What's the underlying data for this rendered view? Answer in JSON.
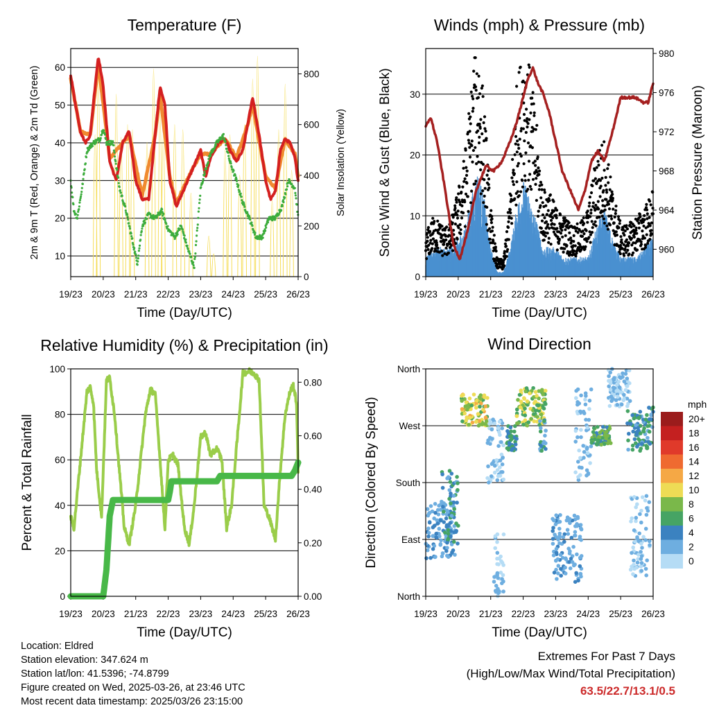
{
  "info": {
    "location": "Location: Eldred",
    "elevation": "Station elevation: 347.624 m",
    "latlon": "Station lat/lon: 41.5396; -74.8799",
    "created": "Figure created on Wed, 2025-03-26, at 23:46 UTC",
    "recent": "Most recent data timestamp: 2025/03/26 23:15:00"
  },
  "extremes": {
    "title": "Extremes For Past 7 Days",
    "subtitle": "(High/Low/Max Wind/Total Precipitation)",
    "values": "63.5/22.7/13.1/0.5",
    "color": "#cc2a2a"
  },
  "chart_data": [
    {
      "type": "line",
      "title": "Temperature (F)",
      "xlabel": "Time (Day/UTC)",
      "ylabel": "2m & 9m T (Red, Orange) & 2m Td (Green)",
      "y2label": "Solar Insolation (Yellow)",
      "x_ticks": [
        "19/23",
        "20/23",
        "21/23",
        "22/23",
        "23/23",
        "24/23",
        "25/23",
        "26/23"
      ],
      "xlim": [
        0,
        7
      ],
      "ylim": [
        4.5,
        65
      ],
      "y_ticks": [
        10,
        20,
        30,
        40,
        50,
        60
      ],
      "y2lim": [
        0,
        900
      ],
      "y2_ticks": [
        0,
        200,
        400,
        600,
        800
      ],
      "grid": true,
      "series": [
        {
          "name": "2m T",
          "color": "#d42020",
          "axis": "left",
          "x": [
            0,
            0.15,
            0.3,
            0.45,
            0.6,
            0.75,
            0.85,
            1.0,
            1.2,
            1.4,
            1.6,
            1.8,
            2.0,
            2.2,
            2.4,
            2.6,
            2.75,
            2.9,
            3.05,
            3.25,
            3.5,
            3.8,
            4.0,
            4.15,
            4.3,
            4.55,
            4.75,
            4.9,
            5.1,
            5.3,
            5.45,
            5.6,
            5.8,
            6.0,
            6.15,
            6.3,
            6.45,
            6.6,
            6.75,
            6.9,
            7.0
          ],
          "y": [
            58,
            50,
            43,
            40,
            42,
            55,
            63,
            55,
            35,
            30,
            40,
            43,
            30,
            25,
            25,
            42,
            55,
            50,
            30,
            23,
            28,
            34,
            38,
            31,
            36,
            40,
            41,
            38,
            35,
            38,
            45,
            52,
            42,
            30,
            25,
            27,
            38,
            41,
            40,
            36,
            30
          ]
        },
        {
          "name": "9m T",
          "color": "#f08a30",
          "axis": "left",
          "x": [
            0,
            0.3,
            0.6,
            0.85,
            1.2,
            1.6,
            1.8,
            2.2,
            2.6,
            2.75,
            3.05,
            3.25,
            3.8,
            4.0,
            4.3,
            4.75,
            4.9,
            5.1,
            5.45,
            5.6,
            6.0,
            6.3,
            6.6,
            6.9,
            7.0
          ],
          "y": [
            57,
            43,
            42,
            61,
            36,
            40,
            42,
            26,
            42,
            53,
            31,
            24,
            34,
            37,
            37,
            41,
            39,
            36,
            45,
            50,
            31,
            28,
            41,
            37,
            31
          ]
        },
        {
          "name": "2m Td",
          "color": "#3cac3c",
          "axis": "left",
          "x": [
            0,
            0.1,
            0.2,
            0.35,
            0.5,
            0.7,
            0.9,
            1.0,
            1.1,
            1.3,
            1.5,
            1.7,
            1.9,
            2.05,
            2.2,
            2.4,
            2.6,
            2.8,
            3.0,
            3.2,
            3.4,
            3.6,
            3.8,
            4.0,
            4.15,
            4.3,
            4.5,
            4.7,
            4.9,
            5.1,
            5.3,
            5.5,
            5.7,
            5.9,
            6.1,
            6.3,
            6.5,
            6.7,
            6.9,
            7.0
          ],
          "y": [
            30,
            22,
            20,
            28,
            38,
            40,
            41,
            44,
            40,
            40,
            28,
            22,
            14,
            8,
            18,
            21,
            20,
            22,
            17,
            15,
            18,
            12,
            7,
            28,
            33,
            37,
            40,
            42,
            35,
            30,
            24,
            20,
            15,
            15,
            20,
            20,
            23,
            30,
            28,
            20
          ]
        },
        {
          "name": "Solar Insolation",
          "color": "#f5dc55",
          "axis": "right",
          "kind": "pulses",
          "peaks_x": [
            0.75,
            0.85,
            1.4,
            1.55,
            1.75,
            1.9,
            2.35,
            2.55,
            2.75,
            2.85,
            3.2,
            3.45,
            3.7,
            4.25,
            4.4,
            4.75,
            4.9,
            5.2,
            5.35,
            5.6,
            5.75,
            6.2,
            6.4,
            6.6,
            6.8
          ],
          "peaks_y": [
            560,
            800,
            720,
            550,
            600,
            580,
            530,
            820,
            650,
            560,
            600,
            580,
            330,
            160,
            90,
            500,
            560,
            400,
            600,
            780,
            870,
            300,
            580,
            760,
            420
          ]
        }
      ]
    },
    {
      "type": "scatter",
      "title": "Winds (mph) & Pressure (mb)",
      "xlabel": "Time (Day/UTC)",
      "ylabel": "Sonic Wind & Gust (Blue, Black)",
      "y2label": "Station Pressure (Maroon)",
      "x_ticks": [
        "19/23",
        "20/23",
        "21/23",
        "22/23",
        "23/23",
        "24/23",
        "25/23",
        "26/23"
      ],
      "xlim": [
        0,
        7
      ],
      "ylim": [
        0,
        37.5
      ],
      "y_ticks": [
        0,
        10,
        20,
        30
      ],
      "y2lim": [
        957.2,
        980.5
      ],
      "y2_ticks": [
        960,
        964,
        968,
        972,
        976,
        980
      ],
      "grid": true,
      "series": [
        {
          "name": "Gust",
          "color": "#000000",
          "x": [
            0,
            0.25,
            0.5,
            0.75,
            1.0,
            1.2,
            1.4,
            1.6,
            1.8,
            2.0,
            2.2,
            2.4,
            2.6,
            2.8,
            3.0,
            3.2,
            3.4,
            3.6,
            3.8,
            4.0,
            4.25,
            4.5,
            4.75,
            5.0,
            5.25,
            5.5,
            5.75,
            6.0,
            6.25,
            6.5,
            6.75,
            7.0
          ],
          "y": [
            5,
            7,
            6,
            6,
            10,
            14,
            22,
            28,
            20,
            8,
            2,
            2,
            10,
            22,
            27,
            24,
            18,
            10,
            10,
            8,
            7,
            6,
            6,
            8,
            14,
            16,
            10,
            6,
            6,
            7,
            8,
            10
          ]
        },
        {
          "name": "Sonic Wind",
          "color": "#4a90d0",
          "x": [
            0,
            0.25,
            0.5,
            0.75,
            1.0,
            1.2,
            1.4,
            1.6,
            1.8,
            2.0,
            2.2,
            2.4,
            2.6,
            2.8,
            3.0,
            3.2,
            3.4,
            3.6,
            3.8,
            4.0,
            4.25,
            4.5,
            4.75,
            5.0,
            5.25,
            5.5,
            5.75,
            6.0,
            6.25,
            6.5,
            6.75,
            7.0
          ],
          "y": [
            2,
            3,
            3,
            3,
            4,
            5,
            8,
            11,
            8,
            3,
            0.5,
            0.5,
            3,
            7,
            10,
            8,
            6,
            3,
            3,
            3,
            2,
            2,
            2,
            2,
            5,
            7,
            4,
            2,
            2,
            2,
            3,
            4
          ]
        },
        {
          "name": "Station Pressure",
          "color": "#a52020",
          "axis": "right",
          "x": [
            0,
            0.15,
            0.35,
            0.6,
            0.85,
            1.05,
            1.3,
            1.55,
            1.85,
            2.1,
            2.35,
            2.6,
            2.8,
            3.0,
            3.15,
            3.3,
            3.45,
            3.6,
            3.8,
            4.0,
            4.2,
            4.45,
            4.7,
            4.9,
            5.1,
            5.3,
            5.5,
            5.75,
            6.0,
            6.2,
            6.45,
            6.7,
            6.85,
            7.0
          ],
          "y": [
            972.5,
            973.5,
            971,
            966,
            960.5,
            959,
            962,
            966,
            968.5,
            968,
            969,
            971,
            973,
            975.5,
            977.5,
            978.5,
            977,
            976,
            974,
            971,
            968,
            966,
            964,
            966,
            969,
            970,
            969,
            972,
            975.5,
            975.5,
            975.5,
            975,
            975,
            977
          ]
        }
      ]
    },
    {
      "type": "line",
      "title": "Relative Humidity (%) & Precipitation (in)",
      "xlabel": "Time (Day/UTC)",
      "ylabel": "Percent & Total Rainfall",
      "x_ticks": [
        "19/23",
        "20/23",
        "21/23",
        "22/23",
        "23/23",
        "24/23",
        "25/23",
        "26/23"
      ],
      "xlim": [
        0,
        7
      ],
      "ylim": [
        0,
        100
      ],
      "y_ticks": [
        0,
        20,
        40,
        60,
        80,
        100
      ],
      "y2lim": [
        0,
        0.85
      ],
      "y2_ticks": [
        "0.00",
        "0.20",
        "0.40",
        "0.60",
        "0.80"
      ],
      "grid": true,
      "series": [
        {
          "name": "Relative Humidity",
          "color": "#9acd4a",
          "x": [
            0,
            0.1,
            0.3,
            0.5,
            0.6,
            0.7,
            0.8,
            0.95,
            1.1,
            1.2,
            1.35,
            1.5,
            1.65,
            1.8,
            2.0,
            2.15,
            2.3,
            2.45,
            2.6,
            2.75,
            2.9,
            3.0,
            3.15,
            3.3,
            3.5,
            3.65,
            3.8,
            4.0,
            4.15,
            4.3,
            4.5,
            4.65,
            4.8,
            4.95,
            5.1,
            5.3,
            5.5,
            5.65,
            5.8,
            5.95,
            6.1,
            6.3,
            6.45,
            6.6,
            6.75,
            6.85,
            6.95,
            7.0
          ],
          "y": [
            35,
            30,
            60,
            90,
            92,
            85,
            55,
            35,
            95,
            96,
            80,
            55,
            30,
            23,
            40,
            60,
            80,
            91,
            89,
            60,
            30,
            60,
            62,
            58,
            30,
            23,
            40,
            70,
            72,
            62,
            65,
            60,
            30,
            40,
            65,
            98,
            99,
            98,
            95,
            40,
            35,
            25,
            55,
            80,
            90,
            93,
            85,
            55
          ]
        },
        {
          "name": "Total Precipitation",
          "color": "#48b848",
          "axis": "right",
          "x": [
            0,
            1.0,
            1.05,
            1.1,
            1.15,
            1.2,
            1.3,
            3.0,
            3.05,
            3.1,
            4.5,
            4.6,
            6.8,
            6.9,
            7.0
          ],
          "y": [
            0,
            0,
            0.05,
            0.1,
            0.2,
            0.3,
            0.36,
            0.36,
            0.39,
            0.43,
            0.43,
            0.45,
            0.45,
            0.47,
            0.5
          ]
        }
      ]
    },
    {
      "type": "scatter",
      "title": "Wind Direction",
      "xlabel": "Time (Day/UTC)",
      "ylabel": "Direction (Colored By Speed)",
      "x_ticks": [
        "19/23",
        "20/23",
        "21/23",
        "22/23",
        "23/23",
        "24/23",
        "25/23",
        "26/23"
      ],
      "xlim": [
        0,
        7
      ],
      "ylim": [
        0,
        360
      ],
      "y_ticks": [
        "North",
        "East",
        "South",
        "West",
        "North"
      ],
      "y_tick_values": [
        0,
        90,
        180,
        270,
        360
      ],
      "grid": true,
      "legend": {
        "title": "mph",
        "placement": "right",
        "labels": [
          "20+",
          "18",
          "16",
          "14",
          "12",
          "10",
          "8",
          "6",
          "4",
          "2",
          "0"
        ],
        "colors": [
          "#9b1c1c",
          "#c42020",
          "#e03a2a",
          "#ef6a30",
          "#f5a845",
          "#eedc55",
          "#7ab84a",
          "#46a464",
          "#3b82c0",
          "#6eaee0",
          "#b5dcf5"
        ]
      },
      "series": [
        {
          "name": "Direction",
          "kind": "clusters",
          "clusters": [
            {
              "x": [
                0,
                0.9
              ],
              "y": [
                60,
                150
              ],
              "speed": [
                1,
                4
              ]
            },
            {
              "x": [
                0.5,
                1.0
              ],
              "y": [
                80,
                200
              ],
              "speed": [
                2,
                7
              ]
            },
            {
              "x": [
                1.1,
                1.9
              ],
              "y": [
                270,
                320
              ],
              "speed": [
                6,
                13
              ]
            },
            {
              "x": [
                1.9,
                2.4
              ],
              "y": [
                180,
                280
              ],
              "speed": [
                0,
                2
              ]
            },
            {
              "x": [
                2.1,
                2.4
              ],
              "y": [
                0,
                100
              ],
              "speed": [
                0,
                2
              ]
            },
            {
              "x": [
                2.5,
                2.8
              ],
              "y": [
                230,
                270
              ],
              "speed": [
                3,
                7
              ]
            },
            {
              "x": [
                2.8,
                3.7
              ],
              "y": [
                270,
                330
              ],
              "speed": [
                5,
                11
              ]
            },
            {
              "x": [
                3.5,
                3.7
              ],
              "y": [
                230,
                280
              ],
              "speed": [
                2,
                6
              ]
            },
            {
              "x": [
                3.9,
                4.8
              ],
              "y": [
                20,
                130
              ],
              "speed": [
                1,
                4
              ]
            },
            {
              "x": [
                4.6,
                5.1
              ],
              "y": [
                180,
                330
              ],
              "speed": [
                0,
                3
              ]
            },
            {
              "x": [
                5.1,
                5.7
              ],
              "y": [
                240,
                270
              ],
              "speed": [
                4,
                9
              ]
            },
            {
              "x": [
                5.6,
                6.3
              ],
              "y": [
                300,
                360
              ],
              "speed": [
                0,
                3
              ]
            },
            {
              "x": [
                6.3,
                6.9
              ],
              "y": [
                30,
                160
              ],
              "speed": [
                0,
                2
              ]
            },
            {
              "x": [
                6.2,
                7.0
              ],
              "y": [
                230,
                300
              ],
              "speed": [
                2,
                7
              ]
            }
          ]
        }
      ]
    }
  ]
}
